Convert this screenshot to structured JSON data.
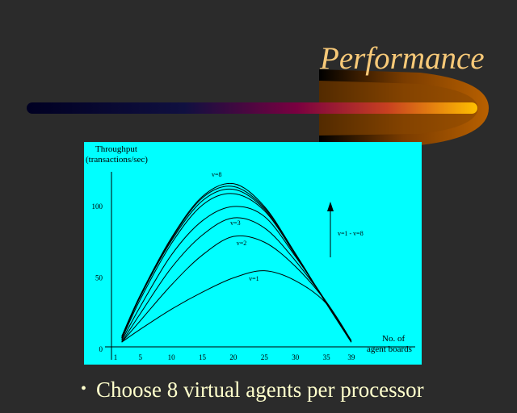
{
  "slide": {
    "title": "Performance",
    "bullet": "Choose 8 virtual agents per processor",
    "colors": {
      "background": "#2b2b2b",
      "title": "#f7c978",
      "bullet_text": "#ffffcc",
      "chart_background": "#00ffff",
      "bar_start": "#000033",
      "bar_mid": "#7a0040",
      "bar_end": "#ffc000"
    }
  },
  "chart_data": {
    "type": "line",
    "ylabel": [
      "Throughput",
      "(transactions/sec)"
    ],
    "xlabel": [
      "No. of",
      "agent boards"
    ],
    "x_ticks": [
      1,
      5,
      10,
      15,
      20,
      25,
      30,
      35,
      39
    ],
    "y_ticks": [
      0,
      50,
      100
    ],
    "xlim": [
      1,
      39
    ],
    "ylim": [
      0,
      120
    ],
    "grid": false,
    "line_color": "#000000",
    "x": [
      2,
      5,
      10,
      15,
      20,
      25,
      30,
      35,
      39
    ],
    "series": [
      {
        "name": "v=1",
        "values": [
          5,
          14,
          28,
          40,
          50,
          55,
          48,
          32,
          6
        ]
      },
      {
        "name": "v=2",
        "values": [
          5,
          20,
          45,
          66,
          79,
          75,
          58,
          33,
          6
        ]
      },
      {
        "name": "v=3",
        "values": [
          5,
          25,
          57,
          80,
          92,
          85,
          62,
          33,
          6
        ]
      },
      {
        "values": [
          6,
          30,
          66,
          90,
          100,
          93,
          65,
          33,
          6
        ]
      },
      {
        "values": [
          7,
          35,
          74,
          101,
          109,
          97,
          66,
          32,
          5
        ]
      },
      {
        "values": [
          8,
          37,
          76,
          104,
          112,
          98,
          66,
          32,
          5
        ]
      },
      {
        "values": [
          8,
          37,
          77,
          106,
          114,
          99,
          67,
          32,
          5
        ]
      },
      {
        "name": "v=8",
        "values": [
          9,
          38,
          78,
          107,
          116,
          100,
          67,
          32,
          5
        ]
      }
    ],
    "annotation": {
      "text": "v=1 - v=8",
      "arrow": "up"
    }
  }
}
